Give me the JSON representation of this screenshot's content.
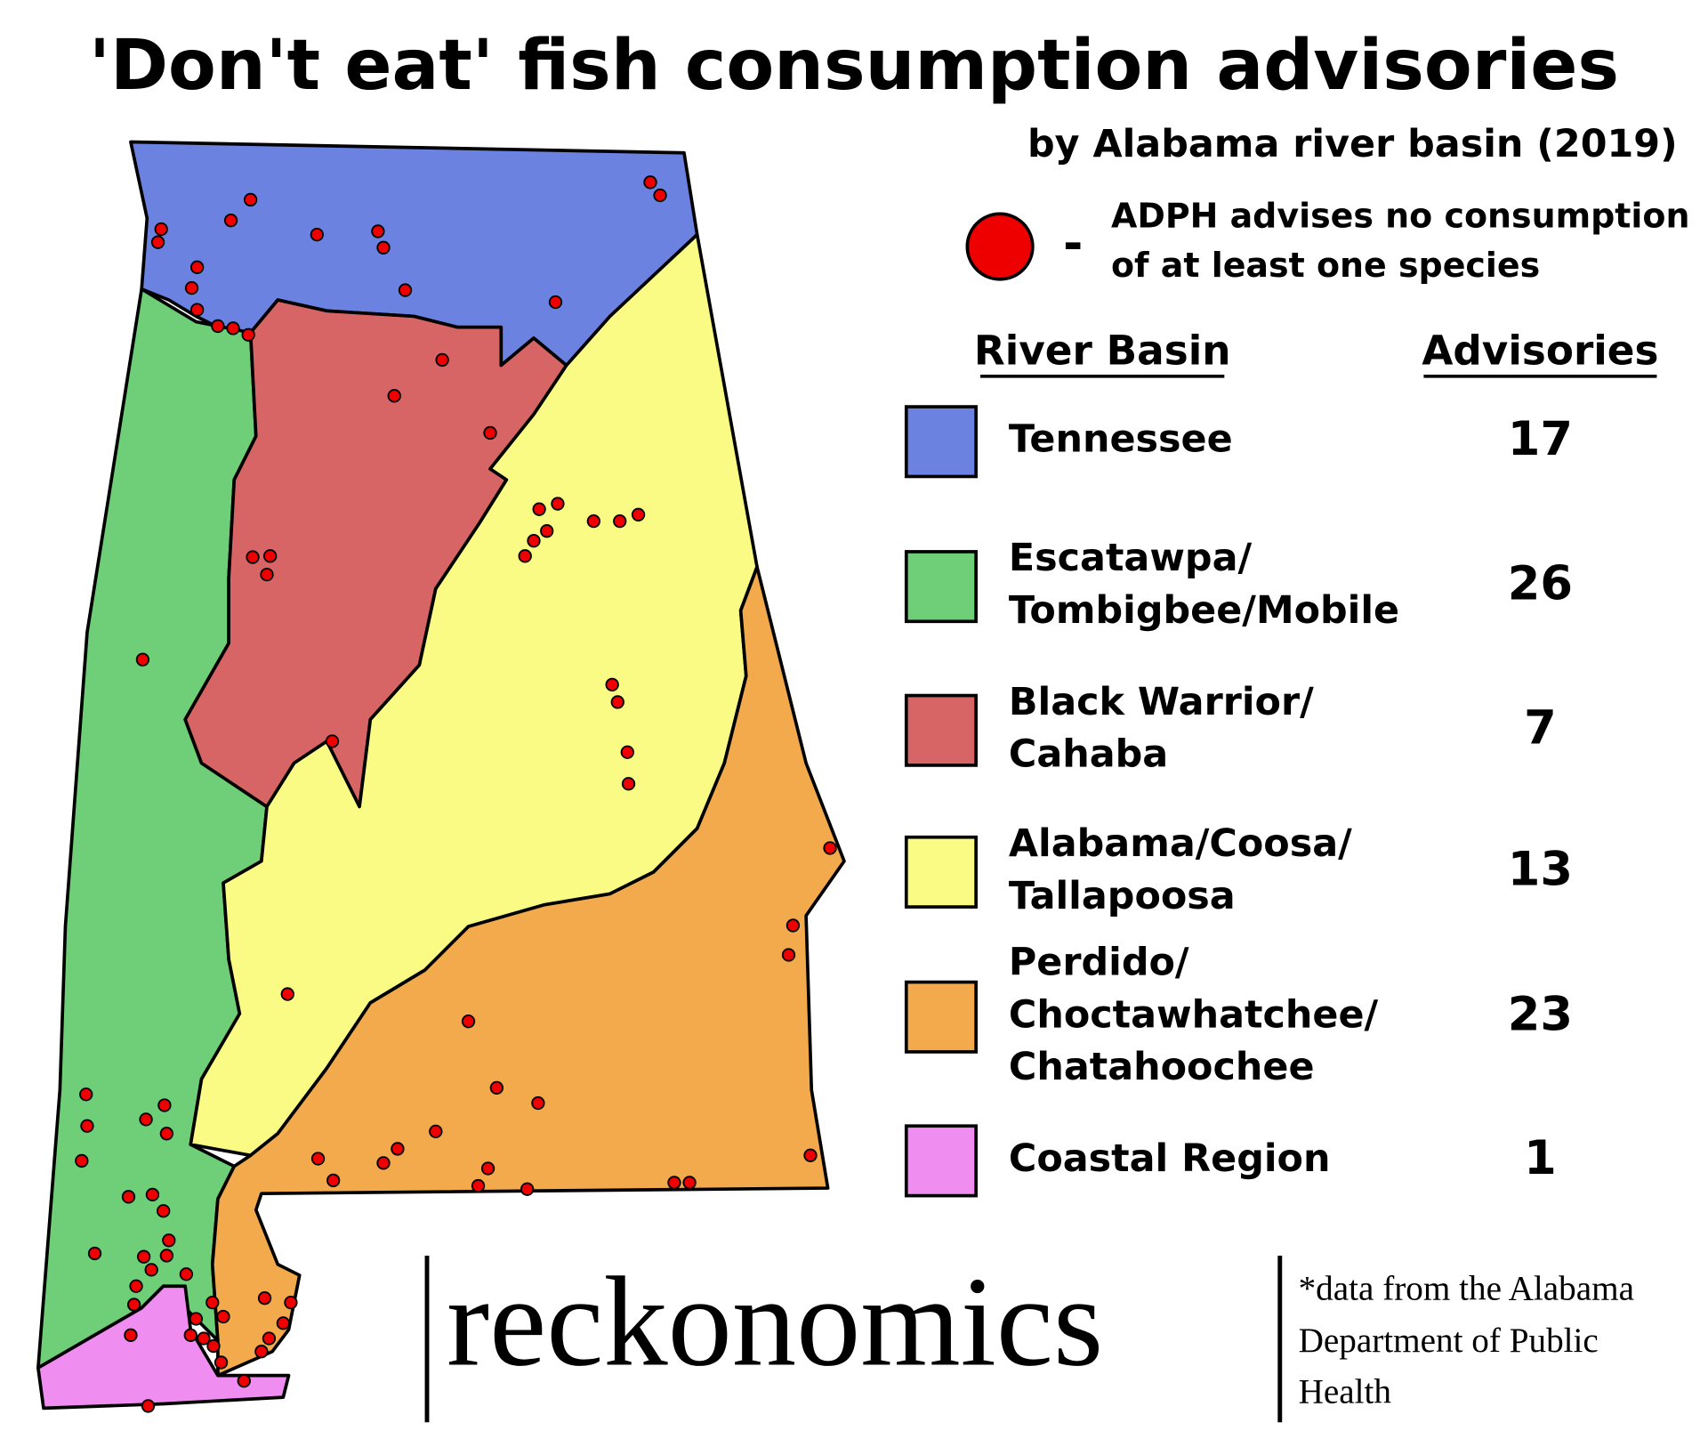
{
  "header": {
    "title": "'Don't eat' fish consumption advisories",
    "subtitle": "by Alabama river basin (2019)"
  },
  "legend": {
    "separator": "-",
    "marker_note": [
      "ADPH advises no consumption",
      "of at least one species"
    ],
    "marker_color": "#ee0000"
  },
  "table": {
    "columns": [
      "River Basin",
      "Advisories"
    ],
    "rows": [
      {
        "name": [
          "Tennessee"
        ],
        "advisories": 17,
        "color": "#6b82e0"
      },
      {
        "name": [
          "Escatawpa/",
          "Tombigbee/Mobile"
        ],
        "advisories": 26,
        "color": "#6fcf78"
      },
      {
        "name": [
          "Black Warrior/",
          "Cahaba"
        ],
        "advisories": 7,
        "color": "#d76565"
      },
      {
        "name": [
          "Alabama/Coosa/",
          "Tallapoosa"
        ],
        "advisories": 13,
        "color": "#fafb84"
      },
      {
        "name": [
          "Perdido/",
          "Choctawhatchee/",
          "Chatahoochee"
        ],
        "advisories": 23,
        "color": "#f2aa4c"
      },
      {
        "name": [
          "Coastal Region"
        ],
        "advisories": 1,
        "color": "#ef8ef0"
      }
    ]
  },
  "footer": {
    "brand": "reckonomics",
    "source": [
      "*data from the Alabama",
      "Department of Public",
      "Health"
    ]
  }
}
